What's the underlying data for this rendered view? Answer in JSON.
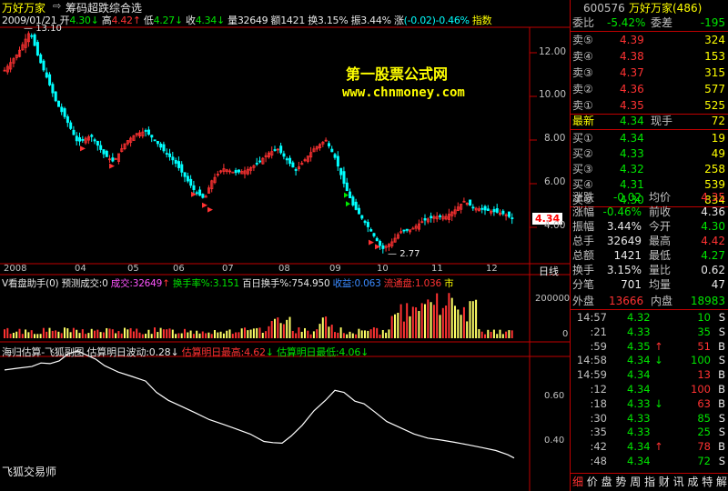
{
  "header": {
    "app_name": "万好万家",
    "formula_name": "筹码超跌综合选",
    "date": "2009/01/21",
    "open_label": "开",
    "open_value": "4.30",
    "high_label": "高",
    "high_value": "4.42",
    "low_label": "低",
    "low_value": "4.27",
    "close_label": "收",
    "close_value": "4.34",
    "volume_label": "量",
    "volume_value": "32649",
    "amount_label": "额",
    "amount_value": "1421",
    "turnover_label": "换",
    "turnover_value": "3.15%",
    "amplitude_label": "振",
    "amplitude_value": "3.44%",
    "change_label": "涨",
    "change_value": "(-0.02)-0.46%",
    "index_label": "指数"
  },
  "watermark": {
    "title": "第一股票公式网",
    "url": "www.chnmoney.com"
  },
  "price_chart": {
    "y_ticks": [
      "12.00",
      "10.00",
      "8.00",
      "6.00",
      "4.00"
    ],
    "high_annotation": "13.10",
    "low_annotation": "2.77",
    "current_price_tag": "4.34",
    "x_ticks": [
      "2008",
      "04",
      "05",
      "06",
      "07",
      "08",
      "09",
      "10",
      "11",
      "12",
      "2009"
    ],
    "period_label": "日线"
  },
  "volume_panel": {
    "title": "V看盘助手(0)",
    "forecast_label": "预测成交:0",
    "vol_label": "成交:32649",
    "turnover_label": "换手率%:3.151",
    "hundred_day_label": "百日换手%:754.950",
    "income_label": "收益:0.063",
    "float_label": "流通盘:1.036",
    "market_label": "市",
    "y_ticks": [
      "200000",
      "0"
    ]
  },
  "indicator_panel": {
    "title": "海归估算-飞狐副图",
    "wave_label": "估算明日波动:0.28",
    "high_est_label": "估算明日最高:4.62",
    "low_est_label": "估算明日最低:4.06",
    "y_ticks": [
      "0.60",
      "0.40"
    ],
    "footer_label": "飞狐交易师"
  },
  "quote_panel": {
    "code": "600576",
    "name": "万好万家(486)",
    "weibi_label": "委比",
    "weibi_value": "-5.42%",
    "weicha_label": "委差",
    "weicha_value": "-195",
    "asks": [
      {
        "label": "卖⑤",
        "price": "4.39",
        "vol": "324"
      },
      {
        "label": "卖④",
        "price": "4.38",
        "vol": "153"
      },
      {
        "label": "卖③",
        "price": "4.37",
        "vol": "315"
      },
      {
        "label": "卖②",
        "price": "4.36",
        "vol": "577"
      },
      {
        "label": "卖①",
        "price": "4.35",
        "vol": "525"
      }
    ],
    "latest_label": "最新",
    "latest_value": "4.34",
    "current_hand_label": "现手",
    "current_hand_value": "72",
    "bids": [
      {
        "label": "买①",
        "price": "4.34",
        "vol": "19"
      },
      {
        "label": "买②",
        "price": "4.33",
        "vol": "49"
      },
      {
        "label": "买③",
        "price": "4.32",
        "vol": "258"
      },
      {
        "label": "买④",
        "price": "4.31",
        "vol": "539"
      },
      {
        "label": "买⑤",
        "price": "4.30",
        "vol": "834"
      }
    ],
    "stats": [
      {
        "l1": "涨跌",
        "v1": "-0.02",
        "c1": "grn",
        "l2": "均价",
        "v2": "4.35",
        "c2": "red"
      },
      {
        "l1": "涨幅",
        "v1": "-0.46%",
        "c1": "grn",
        "l2": "前收",
        "v2": "4.36",
        "c2": "wht"
      },
      {
        "l1": "振幅",
        "v1": "3.44%",
        "c1": "wht",
        "l2": "今开",
        "v2": "4.30",
        "c2": "grn"
      },
      {
        "l1": "总手",
        "v1": "32649",
        "c1": "wht",
        "l2": "最高",
        "v2": "4.42",
        "c2": "red"
      },
      {
        "l1": "总额",
        "v1": "1421",
        "c1": "wht",
        "l2": "最低",
        "v2": "4.27",
        "c2": "grn"
      },
      {
        "l1": "换手",
        "v1": "3.15%",
        "c1": "wht",
        "l2": "量比",
        "v2": "0.62",
        "c2": "wht"
      },
      {
        "l1": "分笔",
        "v1": "701",
        "c1": "wht",
        "l2": "均量",
        "v2": "47",
        "c2": "wht"
      }
    ],
    "outer_label": "外盘",
    "outer_value": "13666",
    "inner_label": "内盘",
    "inner_value": "18983",
    "ticks": [
      {
        "time": "14:57",
        "price": "4.32",
        "arrow": "",
        "vol": "10",
        "side": "S",
        "color": "grn"
      },
      {
        "time": ":21",
        "price": "4.33",
        "arrow": "",
        "vol": "35",
        "side": "S",
        "color": "grn"
      },
      {
        "time": ":59",
        "price": "4.35",
        "arrow": "↑",
        "vol": "51",
        "side": "B",
        "color": "red"
      },
      {
        "time": "14:58",
        "price": "4.34",
        "arrow": "↓",
        "vol": "100",
        "side": "S",
        "color": "grn"
      },
      {
        "time": "14:59",
        "price": "4.34",
        "arrow": "",
        "vol": "13",
        "side": "B",
        "color": "red"
      },
      {
        "time": ":12",
        "price": "4.34",
        "arrow": "",
        "vol": "100",
        "side": "B",
        "color": "red"
      },
      {
        "time": ":18",
        "price": "4.33",
        "arrow": "↓",
        "vol": "63",
        "side": "B",
        "color": "red"
      },
      {
        "time": ":30",
        "price": "4.33",
        "arrow": "",
        "vol": "85",
        "side": "S",
        "color": "grn"
      },
      {
        "time": ":35",
        "price": "4.33",
        "arrow": "",
        "vol": "25",
        "side": "S",
        "color": "grn"
      },
      {
        "time": ":42",
        "price": "4.34",
        "arrow": "↑",
        "vol": "78",
        "side": "B",
        "color": "red"
      },
      {
        "time": ":48",
        "price": "4.34",
        "arrow": "",
        "vol": "72",
        "side": "S",
        "color": "grn"
      }
    ],
    "bottom_tabs": [
      "细",
      "价",
      "盘",
      "势",
      "周",
      "指",
      "财",
      "讯",
      "成",
      "特",
      "解"
    ]
  },
  "colors": {
    "up": "#ff3232",
    "down": "#00ffff",
    "grid": "#c00000",
    "axis_text": "#c0c0c0"
  }
}
